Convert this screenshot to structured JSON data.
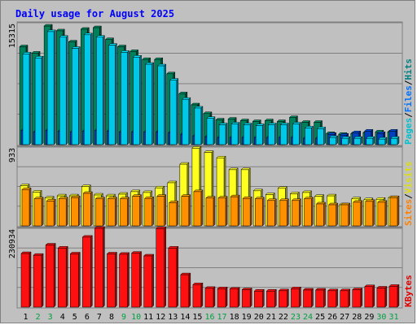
{
  "chart_data": {
    "type": "bar",
    "title": "Daily usage for August 2025",
    "categories": [
      "1",
      "2",
      "3",
      "4",
      "5",
      "6",
      "7",
      "8",
      "9",
      "10",
      "11",
      "12",
      "13",
      "14",
      "15",
      "16",
      "17",
      "18",
      "19",
      "20",
      "21",
      "22",
      "23",
      "24",
      "25",
      "26",
      "27",
      "28",
      "29",
      "30",
      "31"
    ],
    "weekend_days": [
      "2",
      "3",
      "9",
      "10",
      "16",
      "17",
      "23",
      "24",
      "30",
      "31"
    ],
    "panels": [
      {
        "id": "hits",
        "max_label": "15315",
        "ymax": 15315,
        "legend": [
          {
            "text": "Pages",
            "color": "#00c0d0"
          },
          {
            "text": "/",
            "color": "#000000"
          },
          {
            "text": "Files",
            "color": "#0070ff"
          },
          {
            "text": "/",
            "color": "#000000"
          },
          {
            "text": "Hits",
            "color": "#008080"
          }
        ],
        "series": [
          {
            "name": "Hits",
            "color": "#00805a",
            "values": [
              12300,
              11500,
              14900,
              14300,
              12900,
              14500,
              14700,
              13200,
              12300,
              11700,
              10700,
              10700,
              8900,
              6400,
              5000,
              3900,
              3100,
              3200,
              3000,
              2900,
              3000,
              2900,
              3400,
              2800,
              2800,
              1400,
              1300,
              1400,
              1500,
              1600,
              1600
            ]
          },
          {
            "name": "Files",
            "color": "#0040c0",
            "values": [
              1800,
              1600,
              1800,
              1700,
              1600,
              1700,
              1800,
              1700,
              1600,
              1600,
              1600,
              1600,
              1500,
              1300,
              1100,
              1000,
              900,
              900,
              900,
              900,
              900,
              900,
              900,
              800,
              800,
              1300,
              1200,
              1500,
              1700,
              1400,
              1700
            ]
          },
          {
            "name": "Pages",
            "color": "#00c8e8",
            "values": [
              11400,
              10900,
              14200,
              13500,
              12100,
              13800,
              13500,
              12500,
              11600,
              11000,
              10100,
              9900,
              8100,
              5700,
              4600,
              3300,
              2500,
              2600,
              2500,
              2400,
              2500,
              2500,
              2600,
              2100,
              2000,
              900,
              800,
              800,
              800,
              700,
              800
            ]
          }
        ]
      },
      {
        "id": "visits",
        "max_label": "933",
        "ymax": 933,
        "legend": [
          {
            "text": "Sites",
            "color": "#ff8000"
          },
          {
            "text": "/",
            "color": "#000000"
          },
          {
            "text": "Visits",
            "color": "#e0e000"
          }
        ],
        "series": [
          {
            "name": "Visits",
            "color": "#ffff20",
            "values": [
              475,
              400,
              330,
              355,
              355,
              465,
              365,
              355,
              375,
              405,
              395,
              450,
              510,
              730,
              920,
              870,
              805,
              665,
              665,
              415,
              370,
              445,
              380,
              395,
              350,
              355,
              250,
              320,
              310,
              315,
              335
            ]
          },
          {
            "name": "Sites",
            "color": "#ff9000",
            "values": [
              430,
              320,
              295,
              320,
              335,
              385,
              320,
              320,
              320,
              350,
              325,
              350,
              275,
              350,
              405,
              330,
              330,
              345,
              325,
              320,
              300,
              300,
              300,
              320,
              260,
              250,
              250,
              280,
              290,
              280,
              335
            ]
          }
        ]
      },
      {
        "id": "kbytes",
        "max_label": "230934",
        "ymax": 230934,
        "legend": [
          {
            "text": "KBytes",
            "color": "#e00000"
          }
        ],
        "series": [
          {
            "name": "KBytes",
            "color": "#ff1010",
            "values": [
              157000,
              152000,
              182000,
              173000,
              156000,
              205000,
              230934,
              156000,
              155000,
              158000,
              150000,
              230000,
              173000,
              95000,
              66000,
              55000,
              54000,
              53000,
              51000,
              47000,
              47000,
              48000,
              54000,
              50000,
              50000,
              48000,
              48000,
              51000,
              60000,
              56000,
              61000
            ]
          }
        ]
      }
    ]
  }
}
